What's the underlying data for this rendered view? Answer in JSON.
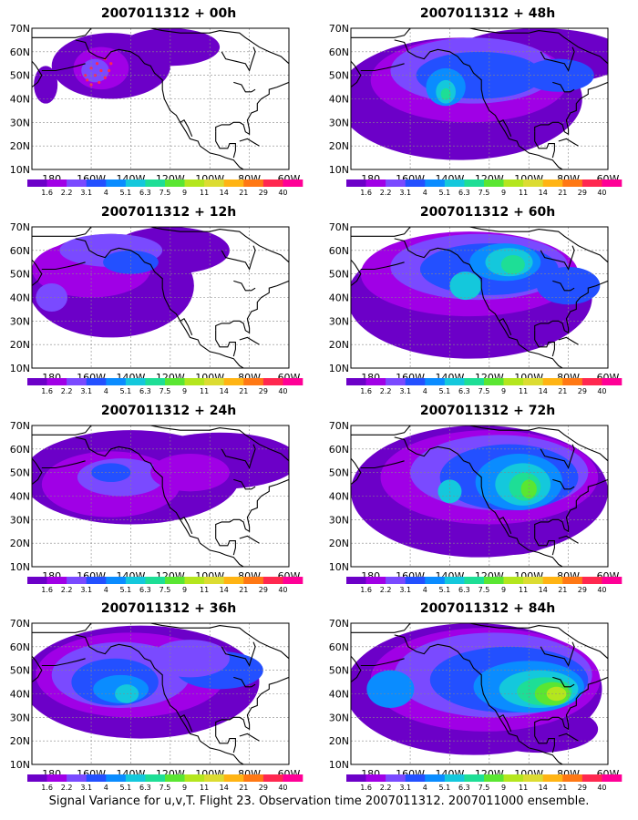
{
  "caption": "Signal Variance for u,v,T. Flight 23. Observation time 2007011312. 2007011000 ensemble.",
  "lat_labels": [
    "70N",
    "60N",
    "50N",
    "40N",
    "30N",
    "20N",
    "10N"
  ],
  "lon_labels": [
    "180",
    "160W",
    "140W",
    "120W",
    "100W",
    "80W",
    "60W"
  ],
  "colorbar": {
    "levels": [
      "1.6",
      "2.2",
      "3.1",
      "4",
      "5.1",
      "6.3",
      "7.5",
      "9",
      "11",
      "14",
      "21",
      "29",
      "40"
    ],
    "colors": [
      "#6c00c8",
      "#a000e6",
      "#7a4aff",
      "#2350ff",
      "#0a8cff",
      "#14c8dc",
      "#1ede96",
      "#5ae632",
      "#b4e61e",
      "#dcdc32",
      "#ffb414",
      "#ff7814",
      "#ff2850",
      "#ff0096"
    ]
  },
  "panels": [
    {
      "title": "2007011312 + 00h",
      "col": 0,
      "row": 0
    },
    {
      "title": "2007011312 + 48h",
      "col": 1,
      "row": 0
    },
    {
      "title": "2007011312 + 12h",
      "col": 0,
      "row": 1
    },
    {
      "title": "2007011312 + 60h",
      "col": 1,
      "row": 1
    },
    {
      "title": "2007011312 + 24h",
      "col": 0,
      "row": 2
    },
    {
      "title": "2007011312 + 72h",
      "col": 1,
      "row": 2
    },
    {
      "title": "2007011312 + 36h",
      "col": 0,
      "row": 3
    },
    {
      "title": "2007011312 + 84h",
      "col": 1,
      "row": 3
    }
  ]
}
